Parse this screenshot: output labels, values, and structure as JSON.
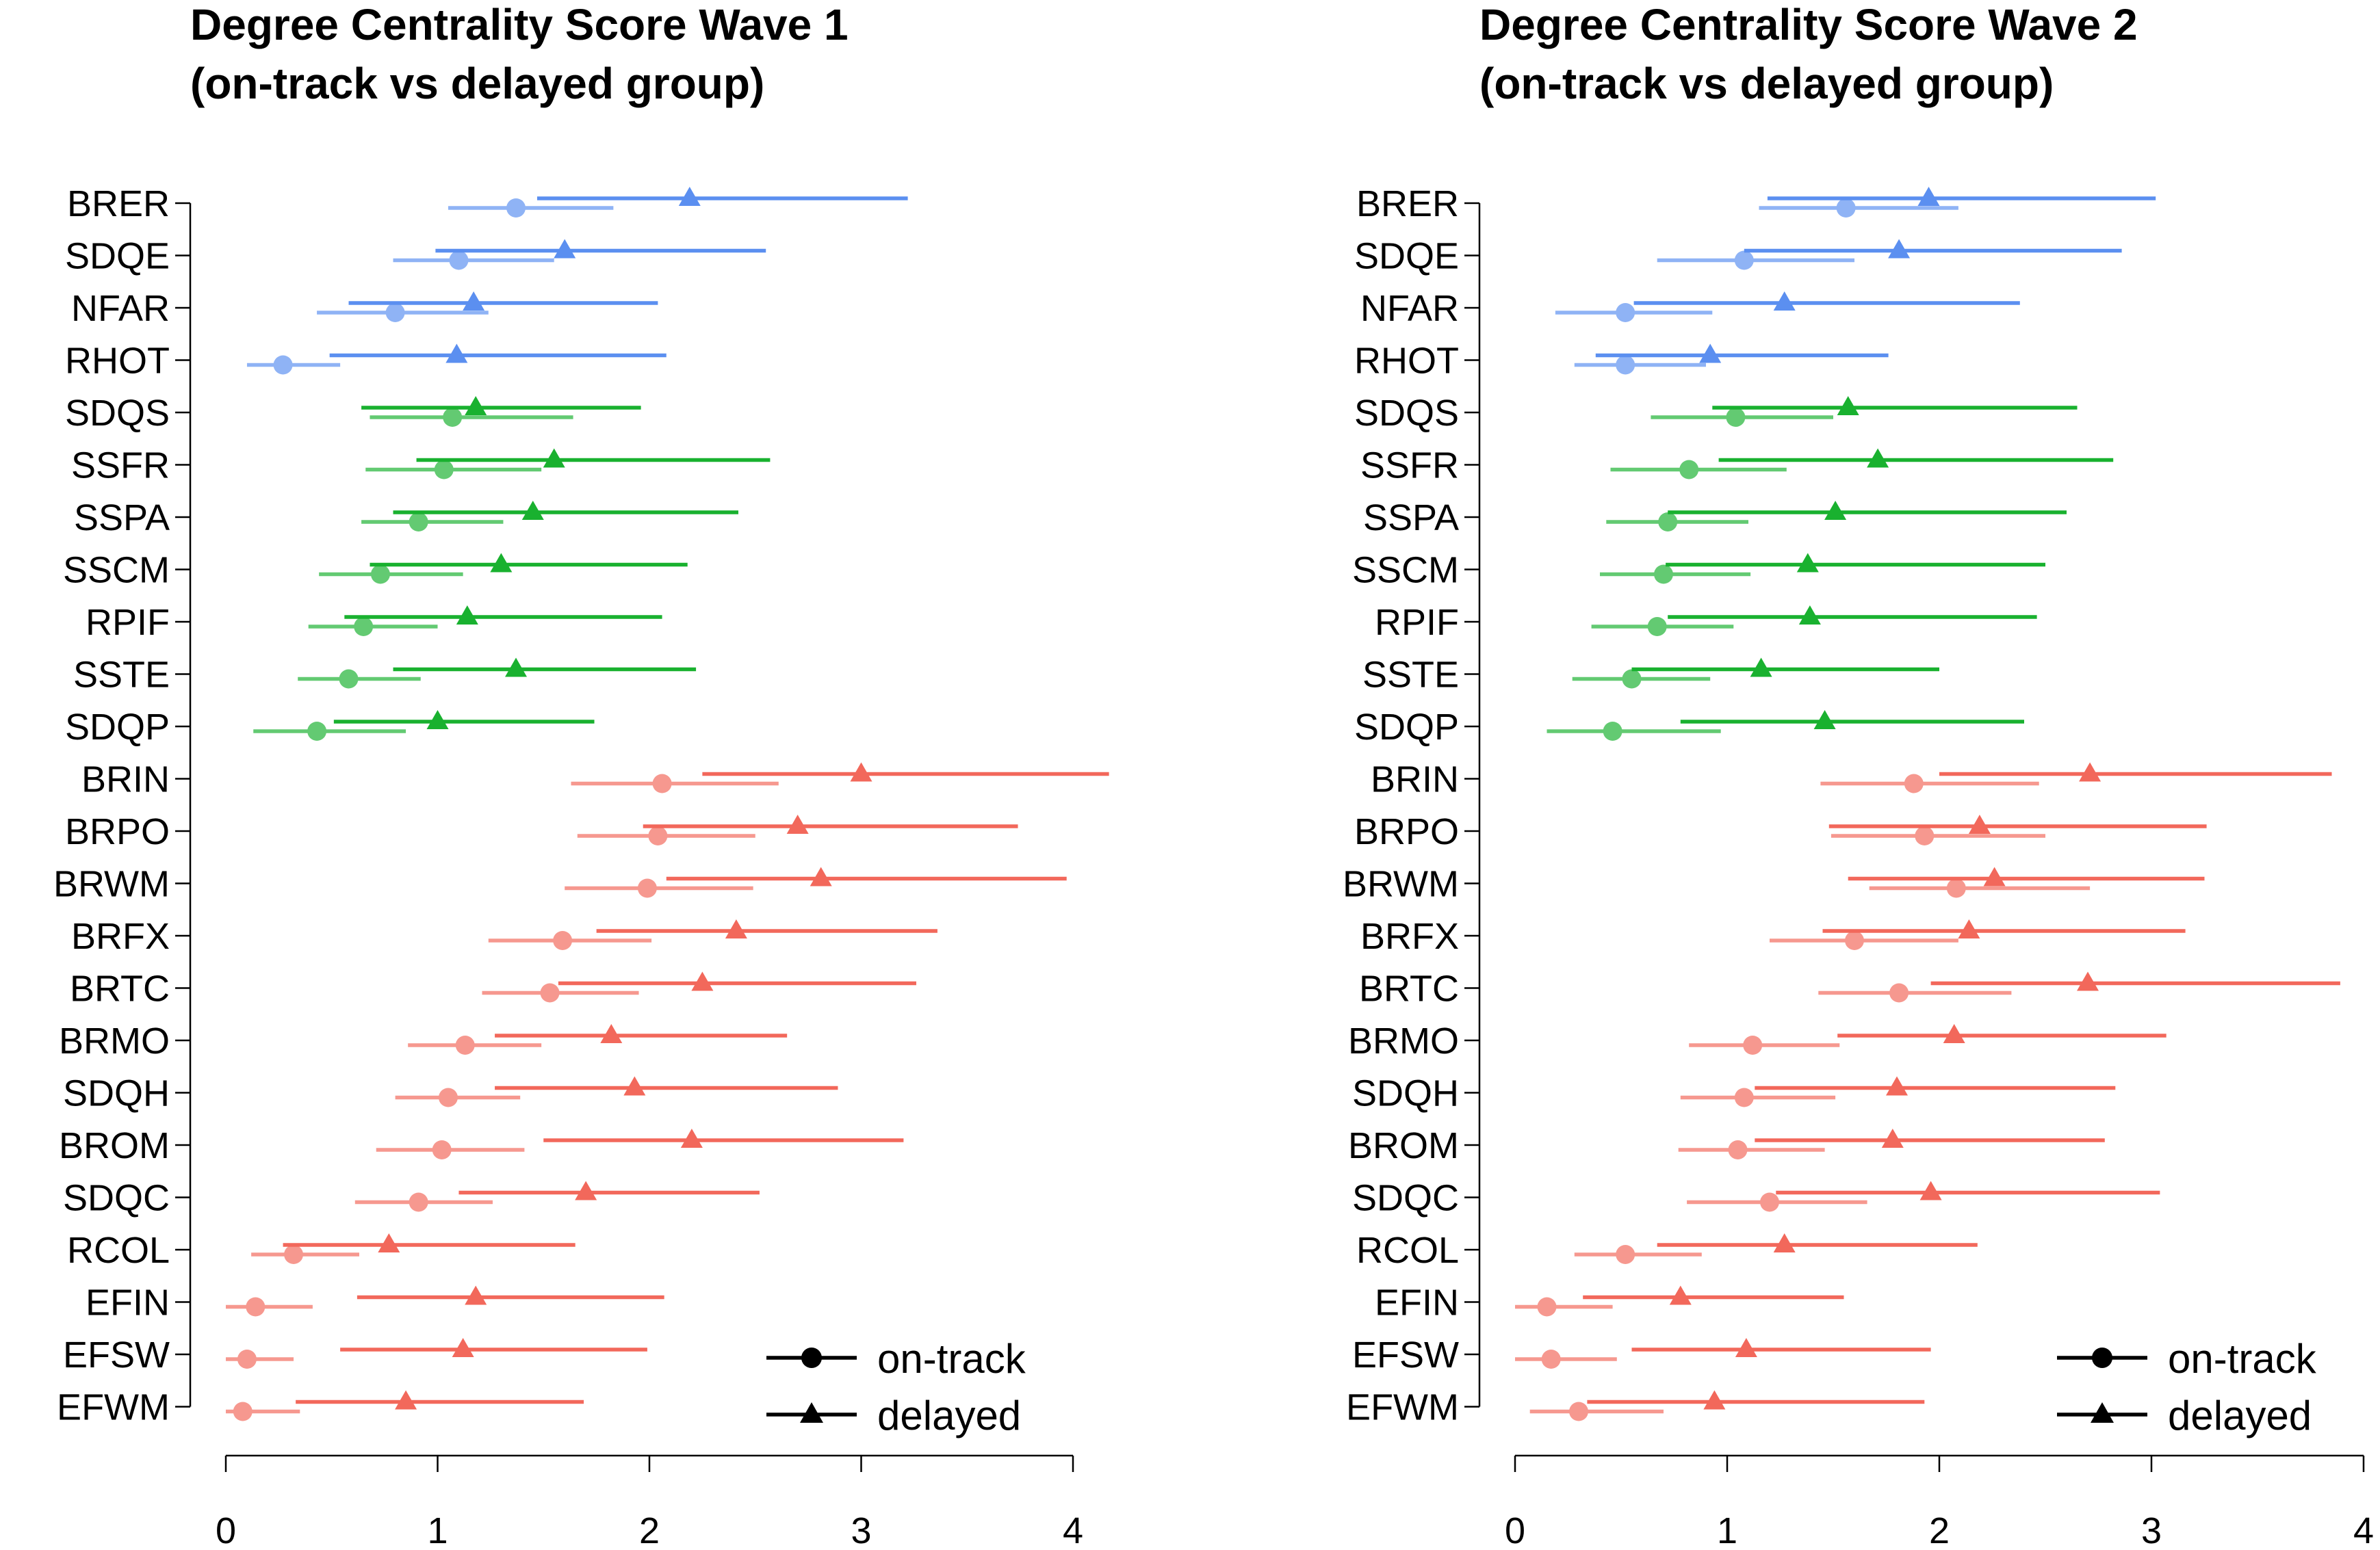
{
  "chart_data": [
    {
      "type": "forest-dot",
      "title_lines": [
        "Degree Centrality Score Wave 1",
        "(on-track vs delayed group)"
      ],
      "xlim": [
        0,
        4
      ],
      "xticks": [
        0,
        1,
        2,
        3,
        4
      ],
      "xlabel": "",
      "ylabel": "",
      "legend": {
        "position": "bottom-right",
        "entries": [
          {
            "label": "on-track",
            "marker": "circle"
          },
          {
            "label": "delayed",
            "marker": "triangle"
          }
        ]
      },
      "colors": {
        "blue": "#5b8ff0",
        "green": "#19b12f",
        "red": "#f2685b"
      },
      "variables": [
        {
          "name": "BRER",
          "group": "blue",
          "on_track": {
            "est": 1.37,
            "lo": 1.05,
            "hi": 1.83
          },
          "delayed": {
            "est": 2.19,
            "lo": 1.47,
            "hi": 3.22
          }
        },
        {
          "name": "SDQE",
          "group": "blue",
          "on_track": {
            "est": 1.1,
            "lo": 0.79,
            "hi": 1.55
          },
          "delayed": {
            "est": 1.6,
            "lo": 0.99,
            "hi": 2.55
          }
        },
        {
          "name": "NFAR",
          "group": "blue",
          "on_track": {
            "est": 0.8,
            "lo": 0.43,
            "hi": 1.24
          },
          "delayed": {
            "est": 1.17,
            "lo": 0.58,
            "hi": 2.04
          }
        },
        {
          "name": "RHOT",
          "group": "blue",
          "on_track": {
            "est": 0.27,
            "lo": 0.1,
            "hi": 0.54
          },
          "delayed": {
            "est": 1.09,
            "lo": 0.49,
            "hi": 2.08
          }
        },
        {
          "name": "SDQS",
          "group": "green",
          "on_track": {
            "est": 1.07,
            "lo": 0.68,
            "hi": 1.64
          },
          "delayed": {
            "est": 1.18,
            "lo": 0.64,
            "hi": 1.96
          }
        },
        {
          "name": "SSFR",
          "group": "green",
          "on_track": {
            "est": 1.03,
            "lo": 0.66,
            "hi": 1.49
          },
          "delayed": {
            "est": 1.55,
            "lo": 0.9,
            "hi": 2.57
          }
        },
        {
          "name": "SSPA",
          "group": "green",
          "on_track": {
            "est": 0.91,
            "lo": 0.64,
            "hi": 1.31
          },
          "delayed": {
            "est": 1.45,
            "lo": 0.79,
            "hi": 2.42
          }
        },
        {
          "name": "SSCM",
          "group": "green",
          "on_track": {
            "est": 0.73,
            "lo": 0.44,
            "hi": 1.12
          },
          "delayed": {
            "est": 1.3,
            "lo": 0.68,
            "hi": 2.18
          }
        },
        {
          "name": "RPIF",
          "group": "green",
          "on_track": {
            "est": 0.65,
            "lo": 0.39,
            "hi": 1.0
          },
          "delayed": {
            "est": 1.14,
            "lo": 0.56,
            "hi": 2.06
          }
        },
        {
          "name": "SSTE",
          "group": "green",
          "on_track": {
            "est": 0.58,
            "lo": 0.34,
            "hi": 0.92
          },
          "delayed": {
            "est": 1.37,
            "lo": 0.79,
            "hi": 2.22
          }
        },
        {
          "name": "SDQP",
          "group": "green",
          "on_track": {
            "est": 0.43,
            "lo": 0.13,
            "hi": 0.85
          },
          "delayed": {
            "est": 1.0,
            "lo": 0.51,
            "hi": 1.74
          }
        },
        {
          "name": "BRIN",
          "group": "red",
          "on_track": {
            "est": 2.06,
            "lo": 1.63,
            "hi": 2.61
          },
          "delayed": {
            "est": 3.0,
            "lo": 2.25,
            "hi": 4.17
          }
        },
        {
          "name": "BRPO",
          "group": "red",
          "on_track": {
            "est": 2.04,
            "lo": 1.66,
            "hi": 2.5
          },
          "delayed": {
            "est": 2.7,
            "lo": 1.97,
            "hi": 3.74
          }
        },
        {
          "name": "BRWM",
          "group": "red",
          "on_track": {
            "est": 1.99,
            "lo": 1.6,
            "hi": 2.49
          },
          "delayed": {
            "est": 2.81,
            "lo": 2.08,
            "hi": 3.97
          }
        },
        {
          "name": "BRFX",
          "group": "red",
          "on_track": {
            "est": 1.59,
            "lo": 1.24,
            "hi": 2.01
          },
          "delayed": {
            "est": 2.41,
            "lo": 1.75,
            "hi": 3.36
          }
        },
        {
          "name": "BRTC",
          "group": "red",
          "on_track": {
            "est": 1.53,
            "lo": 1.21,
            "hi": 1.95
          },
          "delayed": {
            "est": 2.25,
            "lo": 1.57,
            "hi": 3.26
          }
        },
        {
          "name": "BRMO",
          "group": "red",
          "on_track": {
            "est": 1.13,
            "lo": 0.86,
            "hi": 1.49
          },
          "delayed": {
            "est": 1.82,
            "lo": 1.27,
            "hi": 2.65
          }
        },
        {
          "name": "SDQH",
          "group": "red",
          "on_track": {
            "est": 1.05,
            "lo": 0.8,
            "hi": 1.39
          },
          "delayed": {
            "est": 1.93,
            "lo": 1.27,
            "hi": 2.89
          }
        },
        {
          "name": "BROM",
          "group": "red",
          "on_track": {
            "est": 1.02,
            "lo": 0.71,
            "hi": 1.41
          },
          "delayed": {
            "est": 2.2,
            "lo": 1.5,
            "hi": 3.2
          }
        },
        {
          "name": "SDQC",
          "group": "red",
          "on_track": {
            "est": 0.91,
            "lo": 0.61,
            "hi": 1.26
          },
          "delayed": {
            "est": 1.7,
            "lo": 1.1,
            "hi": 2.52
          }
        },
        {
          "name": "RCOL",
          "group": "red",
          "on_track": {
            "est": 0.32,
            "lo": 0.12,
            "hi": 0.63
          },
          "delayed": {
            "est": 0.77,
            "lo": 0.27,
            "hi": 1.65
          }
        },
        {
          "name": "EFIN",
          "group": "red",
          "on_track": {
            "est": 0.14,
            "lo": 0.0,
            "hi": 0.41
          },
          "delayed": {
            "est": 1.18,
            "lo": 0.62,
            "hi": 2.07
          }
        },
        {
          "name": "EFSW",
          "group": "red",
          "on_track": {
            "est": 0.1,
            "lo": 0.0,
            "hi": 0.32
          },
          "delayed": {
            "est": 1.12,
            "lo": 0.54,
            "hi": 1.99
          }
        },
        {
          "name": "EFWM",
          "group": "red",
          "on_track": {
            "est": 0.08,
            "lo": 0.0,
            "hi": 0.35
          },
          "delayed": {
            "est": 0.85,
            "lo": 0.33,
            "hi": 1.69
          }
        }
      ]
    },
    {
      "type": "forest-dot",
      "title_lines": [
        "Degree Centrality Score Wave 2",
        "(on-track vs delayed group)"
      ],
      "xlim": [
        0,
        4
      ],
      "xticks": [
        0,
        1,
        2,
        3,
        4
      ],
      "xlabel": "",
      "ylabel": "",
      "legend": {
        "position": "bottom-right",
        "entries": [
          {
            "label": "on-track",
            "marker": "circle"
          },
          {
            "label": "delayed",
            "marker": "triangle"
          }
        ]
      },
      "colors": {
        "blue": "#5b8ff0",
        "green": "#19b12f",
        "red": "#f2685b"
      },
      "variables": [
        {
          "name": "BRER",
          "group": "blue",
          "on_track": {
            "est": 1.56,
            "lo": 1.15,
            "hi": 2.09
          },
          "delayed": {
            "est": 1.95,
            "lo": 1.19,
            "hi": 3.02
          }
        },
        {
          "name": "SDQE",
          "group": "blue",
          "on_track": {
            "est": 1.08,
            "lo": 0.67,
            "hi": 1.6
          },
          "delayed": {
            "est": 1.81,
            "lo": 1.08,
            "hi": 2.86
          }
        },
        {
          "name": "NFAR",
          "group": "blue",
          "on_track": {
            "est": 0.52,
            "lo": 0.19,
            "hi": 0.93
          },
          "delayed": {
            "est": 1.27,
            "lo": 0.56,
            "hi": 2.38
          }
        },
        {
          "name": "RHOT",
          "group": "blue",
          "on_track": {
            "est": 0.52,
            "lo": 0.28,
            "hi": 0.9
          },
          "delayed": {
            "est": 0.92,
            "lo": 0.38,
            "hi": 1.76
          }
        },
        {
          "name": "SDQS",
          "group": "green",
          "on_track": {
            "est": 1.04,
            "lo": 0.64,
            "hi": 1.5
          },
          "delayed": {
            "est": 1.57,
            "lo": 0.93,
            "hi": 2.65
          }
        },
        {
          "name": "SSFR",
          "group": "green",
          "on_track": {
            "est": 0.82,
            "lo": 0.45,
            "hi": 1.28
          },
          "delayed": {
            "est": 1.71,
            "lo": 0.96,
            "hi": 2.82
          }
        },
        {
          "name": "SSPA",
          "group": "green",
          "on_track": {
            "est": 0.72,
            "lo": 0.43,
            "hi": 1.1
          },
          "delayed": {
            "est": 1.51,
            "lo": 0.72,
            "hi": 2.6
          }
        },
        {
          "name": "SSCM",
          "group": "green",
          "on_track": {
            "est": 0.7,
            "lo": 0.4,
            "hi": 1.11
          },
          "delayed": {
            "est": 1.38,
            "lo": 0.71,
            "hi": 2.5
          }
        },
        {
          "name": "RPIF",
          "group": "green",
          "on_track": {
            "est": 0.67,
            "lo": 0.36,
            "hi": 1.03
          },
          "delayed": {
            "est": 1.39,
            "lo": 0.72,
            "hi": 2.46
          }
        },
        {
          "name": "SSTE",
          "group": "green",
          "on_track": {
            "est": 0.55,
            "lo": 0.27,
            "hi": 0.92
          },
          "delayed": {
            "est": 1.16,
            "lo": 0.55,
            "hi": 2.0
          }
        },
        {
          "name": "SDQP",
          "group": "green",
          "on_track": {
            "est": 0.46,
            "lo": 0.15,
            "hi": 0.97
          },
          "delayed": {
            "est": 1.46,
            "lo": 0.78,
            "hi": 2.4
          }
        },
        {
          "name": "BRIN",
          "group": "red",
          "on_track": {
            "est": 1.88,
            "lo": 1.44,
            "hi": 2.47
          },
          "delayed": {
            "est": 2.71,
            "lo": 2.0,
            "hi": 3.85
          }
        },
        {
          "name": "BRPO",
          "group": "red",
          "on_track": {
            "est": 1.93,
            "lo": 1.49,
            "hi": 2.5
          },
          "delayed": {
            "est": 2.19,
            "lo": 1.48,
            "hi": 3.26
          }
        },
        {
          "name": "BRWM",
          "group": "red",
          "on_track": {
            "est": 2.08,
            "lo": 1.67,
            "hi": 2.71
          },
          "delayed": {
            "est": 2.26,
            "lo": 1.57,
            "hi": 3.25
          }
        },
        {
          "name": "BRFX",
          "group": "red",
          "on_track": {
            "est": 1.6,
            "lo": 1.2,
            "hi": 2.09
          },
          "delayed": {
            "est": 2.14,
            "lo": 1.45,
            "hi": 3.16
          }
        },
        {
          "name": "BRTC",
          "group": "red",
          "on_track": {
            "est": 1.81,
            "lo": 1.43,
            "hi": 2.34
          },
          "delayed": {
            "est": 2.7,
            "lo": 1.96,
            "hi": 3.89
          }
        },
        {
          "name": "BRMO",
          "group": "red",
          "on_track": {
            "est": 1.12,
            "lo": 0.82,
            "hi": 1.53
          },
          "delayed": {
            "est": 2.07,
            "lo": 1.52,
            "hi": 3.07
          }
        },
        {
          "name": "SDQH",
          "group": "red",
          "on_track": {
            "est": 1.08,
            "lo": 0.78,
            "hi": 1.51
          },
          "delayed": {
            "est": 1.8,
            "lo": 1.13,
            "hi": 2.83
          }
        },
        {
          "name": "BROM",
          "group": "red",
          "on_track": {
            "est": 1.05,
            "lo": 0.77,
            "hi": 1.46
          },
          "delayed": {
            "est": 1.78,
            "lo": 1.13,
            "hi": 2.78
          }
        },
        {
          "name": "SDQC",
          "group": "red",
          "on_track": {
            "est": 1.2,
            "lo": 0.81,
            "hi": 1.66
          },
          "delayed": {
            "est": 1.96,
            "lo": 1.23,
            "hi": 3.04
          }
        },
        {
          "name": "RCOL",
          "group": "red",
          "on_track": {
            "est": 0.52,
            "lo": 0.28,
            "hi": 0.88
          },
          "delayed": {
            "est": 1.27,
            "lo": 0.67,
            "hi": 2.18
          }
        },
        {
          "name": "EFIN",
          "group": "red",
          "on_track": {
            "est": 0.15,
            "lo": 0.0,
            "hi": 0.46
          },
          "delayed": {
            "est": 0.78,
            "lo": 0.32,
            "hi": 1.55
          }
        },
        {
          "name": "EFSW",
          "group": "red",
          "on_track": {
            "est": 0.17,
            "lo": 0.0,
            "hi": 0.48
          },
          "delayed": {
            "est": 1.09,
            "lo": 0.55,
            "hi": 1.96
          }
        },
        {
          "name": "EFWM",
          "group": "red",
          "on_track": {
            "est": 0.3,
            "lo": 0.07,
            "hi": 0.7
          },
          "delayed": {
            "est": 0.94,
            "lo": 0.34,
            "hi": 1.93
          }
        }
      ]
    }
  ]
}
